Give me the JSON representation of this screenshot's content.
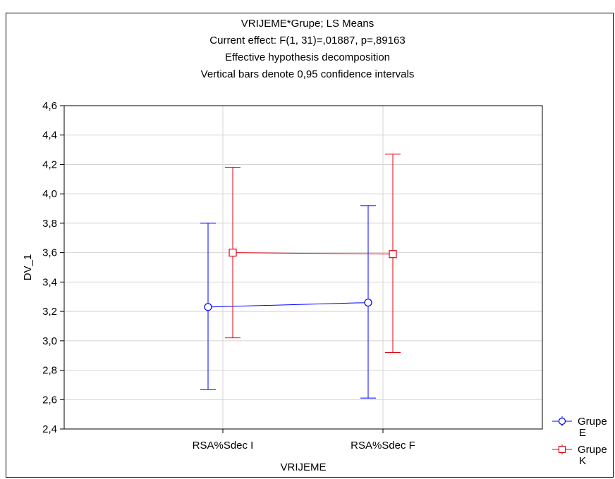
{
  "chart_data": {
    "type": "line",
    "title_lines": [
      "VRIJEME*Grupe; LS Means",
      "Current effect: F(1, 31)=,01887, p=,89163",
      "Effective hypothesis decomposition",
      "Vertical bars denote 0,95 confidence intervals"
    ],
    "xlabel": "VRIJEME",
    "ylabel": "DV_1",
    "categories": [
      "RSA%Sdec I",
      "RSA%Sdec F"
    ],
    "ylim": [
      2.4,
      4.6
    ],
    "yticks": [
      "2,4",
      "2,6",
      "2,8",
      "3,0",
      "3,2",
      "3,4",
      "3,6",
      "3,8",
      "4,0",
      "4,2",
      "4,4",
      "4,6"
    ],
    "grid": true,
    "legend_position": "right-bottom",
    "series": [
      {
        "name": "Grupe E",
        "legend_lines": [
          "Grupe",
          "E"
        ],
        "marker": "circle",
        "color": "#0000ff",
        "values": [
          3.23,
          3.26
        ],
        "ci_low": [
          2.67,
          2.61
        ],
        "ci_high": [
          3.8,
          3.92
        ]
      },
      {
        "name": "Grupe K",
        "legend_lines": [
          "Grupe",
          "K"
        ],
        "marker": "square",
        "color": "#e0000f",
        "values": [
          3.6,
          3.59
        ],
        "ci_low": [
          3.02,
          2.92
        ],
        "ci_high": [
          4.18,
          4.27
        ]
      }
    ]
  }
}
